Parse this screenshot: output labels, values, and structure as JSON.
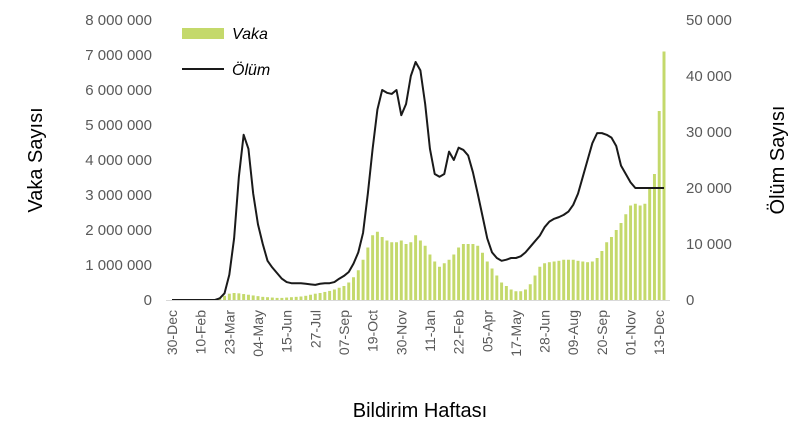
{
  "chart_data": {
    "type": "bar+line",
    "xlabel": "Bildirim Haftası",
    "ylabel_left": "Vaka Sayısı",
    "ylabel_right": "Ölüm Sayısı",
    "ylim_left": [
      0,
      8000000
    ],
    "ylim_right": [
      0,
      50000
    ],
    "y_ticks_left": [
      "0",
      "1 000 000",
      "2 000 000",
      "3 000 000",
      "4 000 000",
      "5 000 000",
      "6 000 000",
      "7 000 000",
      "8 000 000"
    ],
    "y_ticks_right": [
      "0",
      "10 000",
      "20 000",
      "30 000",
      "40 000",
      "50 000"
    ],
    "x_tick_labels": [
      "30-Dec",
      "10-Feb",
      "23-Mar",
      "04-May",
      "15-Jun",
      "27-Jul",
      "07-Sep",
      "19-Oct",
      "30-Nov",
      "11-Jan",
      "22-Feb",
      "05-Apr",
      "17-May",
      "28-Jun",
      "09-Aug",
      "20-Sep",
      "01-Nov",
      "13-Dec"
    ],
    "x_tick_label_every_n_weeks": 6,
    "week_count": 104,
    "grid": false,
    "legend_position": "top-left",
    "series": [
      {
        "name": "Vaka",
        "kind": "bar",
        "axis": "left",
        "color": "#c4d96b",
        "values": [
          0,
          0,
          0,
          0,
          0,
          0,
          0,
          0,
          0,
          10000,
          60000,
          120000,
          180000,
          200000,
          190000,
          170000,
          150000,
          130000,
          110000,
          90000,
          80000,
          70000,
          60000,
          60000,
          70000,
          80000,
          90000,
          100000,
          120000,
          150000,
          180000,
          200000,
          230000,
          260000,
          300000,
          350000,
          400000,
          500000,
          650000,
          850000,
          1150000,
          1500000,
          1850000,
          1950000,
          1800000,
          1700000,
          1650000,
          1650000,
          1700000,
          1600000,
          1650000,
          1850000,
          1700000,
          1550000,
          1300000,
          1100000,
          950000,
          1050000,
          1150000,
          1300000,
          1500000,
          1600000,
          1600000,
          1600000,
          1550000,
          1350000,
          1100000,
          900000,
          700000,
          500000,
          400000,
          300000,
          250000,
          250000,
          300000,
          450000,
          700000,
          950000,
          1050000,
          1080000,
          1100000,
          1120000,
          1150000,
          1150000,
          1150000,
          1120000,
          1100000,
          1080000,
          1100000,
          1200000,
          1400000,
          1650000,
          1800000,
          2000000,
          2200000,
          2450000,
          2700000,
          2750000,
          2700000,
          2750000,
          3200000,
          3600000,
          5400000,
          7100000
        ]
      },
      {
        "name": "Ölüm",
        "kind": "line",
        "axis": "right",
        "color": "#1a1a1a",
        "values": [
          0,
          0,
          0,
          0,
          0,
          0,
          0,
          0,
          0,
          0,
          300,
          1200,
          4500,
          11000,
          22000,
          29500,
          27000,
          19000,
          13500,
          10000,
          7000,
          5800,
          4800,
          3800,
          3200,
          3000,
          3000,
          3000,
          2900,
          2800,
          2700,
          2900,
          3000,
          3000,
          3200,
          3800,
          4300,
          5000,
          6500,
          8500,
          12000,
          19000,
          27000,
          34000,
          37500,
          37000,
          36800,
          37500,
          33000,
          35000,
          40000,
          42500,
          41000,
          35000,
          27000,
          22500,
          22000,
          22500,
          26500,
          25000,
          27200,
          26800,
          25800,
          22800,
          19000,
          15000,
          11000,
          8500,
          7500,
          7000,
          7200,
          7500,
          7500,
          7800,
          8500,
          9500,
          10500,
          11500,
          13000,
          14000,
          14500,
          14800,
          15200,
          15800,
          17000,
          19000,
          22000,
          25000,
          28000,
          29800,
          29800,
          29500,
          29000,
          27500,
          24000,
          22500,
          21000,
          20000,
          20000,
          20000,
          20000,
          20000,
          20000,
          20000
        ]
      }
    ]
  }
}
